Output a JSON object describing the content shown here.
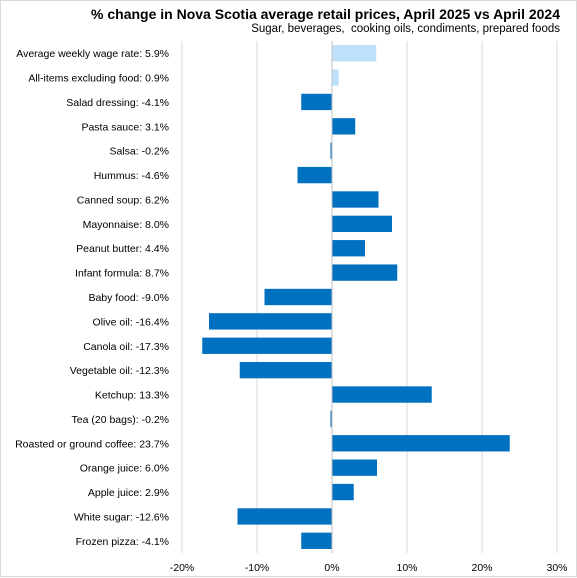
{
  "chart_data": {
    "type": "bar",
    "orientation": "horizontal",
    "title": "% change in Nova Scotia average retail prices, April 2025 vs April 2024",
    "subtitle": "Sugar, beverages,  cooking oils, condiments, prepared foods",
    "xlabel": "",
    "ylabel": "",
    "xlim": [
      -20,
      30
    ],
    "xticks": [
      -20,
      -10,
      0,
      10,
      20,
      30
    ],
    "xtick_labels": [
      "-20%",
      "-10%",
      "0%",
      "10%",
      "20%",
      "30%"
    ],
    "grid": true,
    "legend": "none",
    "colors": {
      "main": "#0070c0",
      "reference": "#bde0fb",
      "grid": "#d9d9d9",
      "axis": "#bfbfbf"
    },
    "categories": [
      "Average weekly wage rate",
      "All-items excluding food",
      "Salad dressing",
      "Pasta sauce",
      "Salsa",
      "Hummus",
      "Canned soup",
      "Mayonnaise",
      "Peanut butter",
      "Infant formula",
      "Baby food",
      "Olive oil",
      "Canola oil",
      "Vegetable oil",
      "Ketchup",
      "Tea (20 bags)",
      "Roasted or ground coffee",
      "Orange juice",
      "Apple juice",
      "White sugar",
      "Frozen pizza"
    ],
    "labels": [
      "Average weekly wage rate: 5.9%",
      "All-items excluding food: 0.9%",
      "Salad dressing: -4.1%",
      "Pasta sauce: 3.1%",
      "Salsa: -0.2%",
      "Hummus: -4.6%",
      "Canned soup: 6.2%",
      "Mayonnaise: 8.0%",
      "Peanut butter: 4.4%",
      "Infant formula: 8.7%",
      "Baby food: -9.0%",
      "Olive oil: -16.4%",
      "Canola oil: -17.3%",
      "Vegetable oil: -12.3%",
      "Ketchup: 13.3%",
      "Tea (20 bags): -0.2%",
      "Roasted or ground coffee: 23.7%",
      "Orange juice: 6.0%",
      "Apple juice: 2.9%",
      "White sugar: -12.6%",
      "Frozen pizza: -4.1%"
    ],
    "values": [
      5.9,
      0.9,
      -4.1,
      3.1,
      -0.2,
      -4.6,
      6.2,
      8.0,
      4.4,
      8.7,
      -9.0,
      -16.4,
      -17.3,
      -12.3,
      13.3,
      -0.2,
      23.7,
      6.0,
      2.9,
      -12.6,
      -4.1
    ],
    "reference_categories": [
      "Average weekly wage rate",
      "All-items excluding food"
    ]
  }
}
